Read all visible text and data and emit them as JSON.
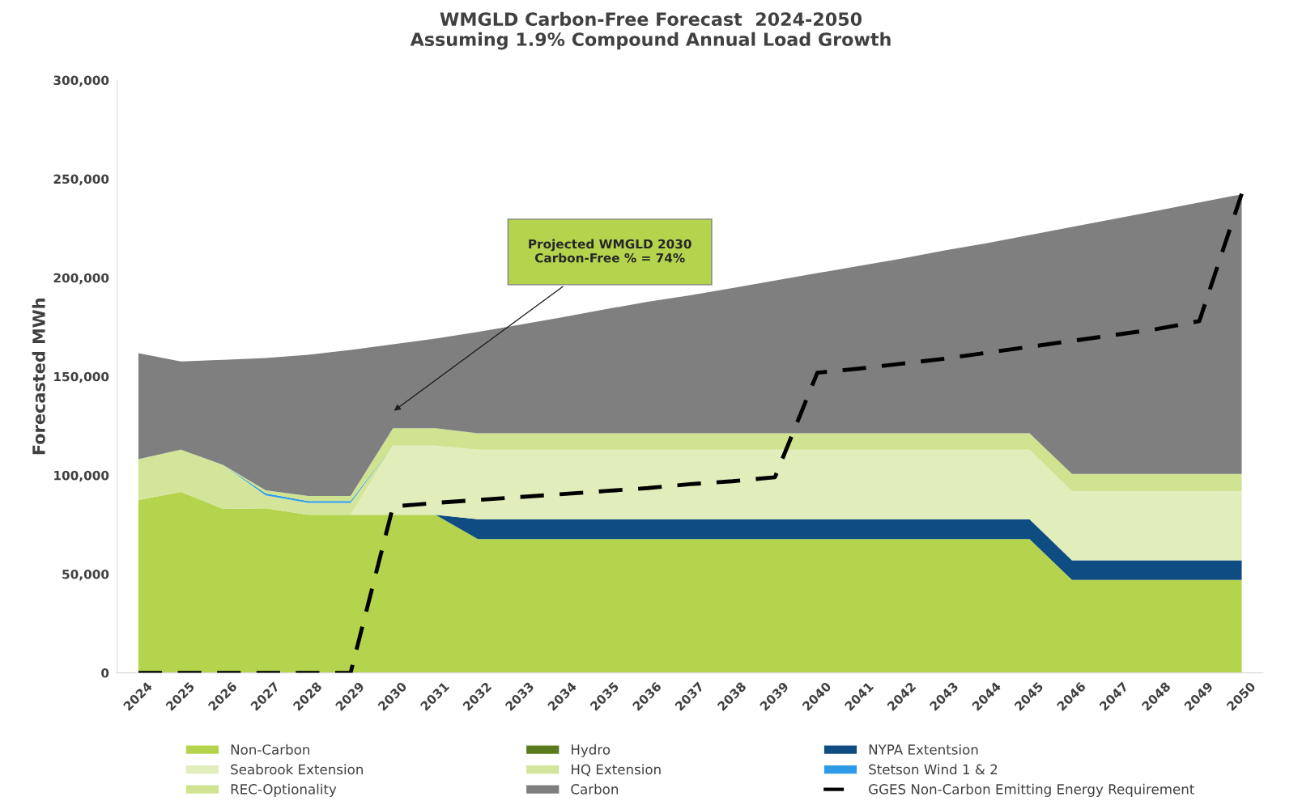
{
  "chart_data": {
    "type": "area",
    "stacked": true,
    "title": "WMGLD Carbon-Free Forecast  2024-2050\nAssuming 1.9% Compound Annual Load Growth",
    "ylabel": "Forecasted MWh",
    "categories": [
      "2024",
      "2025",
      "2026",
      "2027",
      "2028",
      "2029",
      "2030",
      "2031",
      "2032",
      "2033",
      "2034",
      "2035",
      "2036",
      "2037",
      "2038",
      "2039",
      "2040",
      "2041",
      "2042",
      "2043",
      "2044",
      "2045",
      "2046",
      "2047",
      "2048",
      "2049",
      "2050"
    ],
    "ylim": [
      0,
      300000
    ],
    "yticks": [
      {
        "value": 0,
        "label": "0"
      },
      {
        "value": 50000,
        "label": "50,000"
      },
      {
        "value": 100000,
        "label": "100,000"
      },
      {
        "value": 150000,
        "label": "150,000"
      },
      {
        "value": 200000,
        "label": "200,000"
      },
      {
        "value": 250000,
        "label": "250,000"
      },
      {
        "value": 300000,
        "label": "300,000"
      }
    ],
    "grid": false,
    "legend": "bottom",
    "series": [
      {
        "name": "Non-Carbon",
        "color": "#b5d44e",
        "values": [
          87500,
          91600,
          83000,
          83300,
          80000,
          80000,
          80000,
          80000,
          67700,
          67700,
          67700,
          67700,
          67700,
          67700,
          67700,
          67700,
          67700,
          67700,
          67700,
          67700,
          67700,
          67700,
          47000,
          47000,
          47000,
          47000,
          47000
        ]
      },
      {
        "name": "Hydro",
        "color": "#5a7a1e",
        "values": [
          null,
          null,
          null,
          null,
          null,
          null,
          null,
          null,
          null,
          null,
          null,
          null,
          null,
          null,
          null,
          null,
          null,
          null,
          null,
          null,
          null,
          null,
          null,
          null,
          null,
          null,
          null
        ]
      },
      {
        "name": "NYPA Extentsion",
        "color": "#0f4c81",
        "values": [
          0,
          0,
          0,
          0,
          0,
          0,
          0,
          0,
          10000,
          10000,
          10000,
          10000,
          10000,
          10000,
          10000,
          10000,
          10000,
          10000,
          10000,
          10000,
          10000,
          10000,
          10000,
          10000,
          10000,
          10000,
          10000
        ]
      },
      {
        "name": "Seabrook Extension",
        "color": "#e2edbc",
        "values": [
          0,
          0,
          0,
          0,
          0,
          0,
          35000,
          35000,
          35300,
          35300,
          35300,
          35300,
          35300,
          35300,
          35300,
          35300,
          35300,
          35300,
          35300,
          35300,
          35300,
          35300,
          35000,
          35000,
          35000,
          35000,
          35000
        ]
      },
      {
        "name": "HQ Extension",
        "color": "#d3e59a",
        "values": [
          20600,
          21400,
          22200,
          6500,
          6000,
          6000,
          0,
          0,
          0,
          0,
          0,
          0,
          0,
          0,
          0,
          0,
          0,
          0,
          0,
          0,
          0,
          0,
          0,
          0,
          0,
          0,
          0
        ]
      },
      {
        "name": "Stetson Wind 1 & 2",
        "color": "#2f9be8",
        "values": [
          0,
          0,
          0,
          1000,
          1000,
          1000,
          0,
          0,
          0,
          0,
          0,
          0,
          0,
          0,
          0,
          0,
          0,
          0,
          0,
          0,
          0,
          0,
          0,
          0,
          0,
          0,
          0
        ]
      },
      {
        "name": "REC-Optionality",
        "color": "#cfe391",
        "values": [
          0,
          0,
          0,
          1600,
          2500,
          2500,
          8800,
          8800,
          8300,
          8300,
          8300,
          8300,
          8300,
          8300,
          8300,
          8300,
          8300,
          8300,
          8300,
          8300,
          8300,
          8300,
          8700,
          8700,
          8700,
          8700,
          8700
        ]
      },
      {
        "name": "Carbon",
        "color": "#7f7f7f",
        "values": [
          53700,
          44600,
          53200,
          66900,
          71500,
          73900,
          42500,
          45400,
          51200,
          54900,
          58700,
          62700,
          66500,
          69800,
          73500,
          77200,
          81000,
          84700,
          88400,
          92500,
          96200,
          100300,
          125000,
          129100,
          133200,
          137400,
          141500
        ]
      },
      {
        "name": "GGES Non-Carbon Emitting Energy Requirement",
        "type": "line",
        "line_style": "dashed",
        "color": "#000000",
        "values": [
          0,
          0,
          0,
          0,
          0,
          0,
          84200,
          86000,
          87500,
          89000,
          90500,
          92000,
          93500,
          95500,
          97000,
          99000,
          151900,
          154000,
          156500,
          159000,
          162000,
          165000,
          168000,
          171000,
          174000,
          178000,
          242500
        ]
      }
    ],
    "annotations": [
      "Projected WMGLD 2030\nCarbon-Free % = 74%"
    ]
  }
}
